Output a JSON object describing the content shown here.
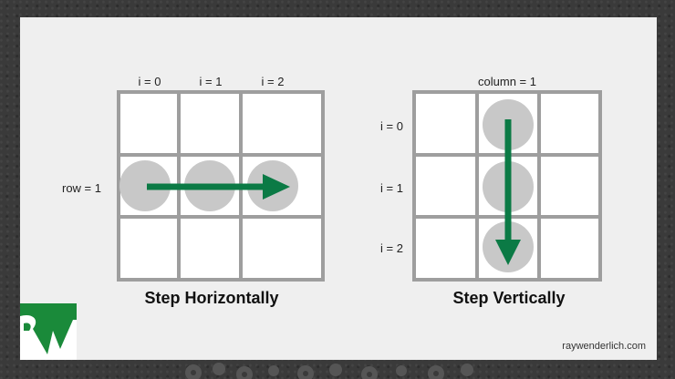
{
  "left_diagram": {
    "col_labels": [
      "i = 0",
      "i = 1",
      "i = 2"
    ],
    "row_label": "row = 1",
    "title": "Step Horizontally"
  },
  "right_diagram": {
    "col_label": "column = 1",
    "row_labels": [
      "i = 0",
      "i = 1",
      "i = 2"
    ],
    "title": "Step Vertically"
  },
  "footer": "raywenderlich.com",
  "colors": {
    "grid": "#9e9e9e",
    "circle": "#c8c8c8",
    "arrow": "#0b7a45",
    "logo": "#1a8a3a",
    "background": "#efefef"
  },
  "icons": [
    "raywenderlich-logo-icon",
    "gear-icon"
  ]
}
